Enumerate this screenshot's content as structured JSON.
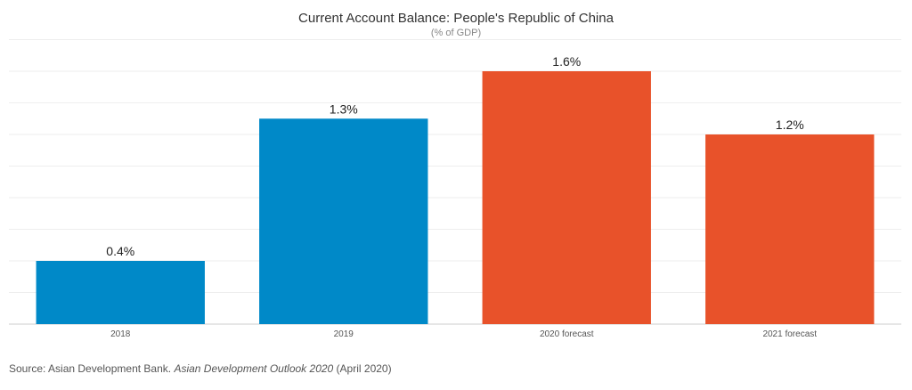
{
  "chart_data": {
    "type": "bar",
    "title": "Current Account Balance: People's Republic of China",
    "subtitle": "(% of GDP)",
    "categories": [
      "2018",
      "2019",
      "2020 forecast",
      "2021 forecast"
    ],
    "values": [
      0.4,
      1.3,
      1.6,
      1.2
    ],
    "value_labels": [
      "0.4%",
      "1.3%",
      "1.6%",
      "1.2%"
    ],
    "bar_colors": [
      "#0089c8",
      "#0089c8",
      "#e8522a",
      "#e8522a"
    ],
    "ylim": [
      0,
      1.6
    ],
    "grid": true,
    "xlabel": "",
    "ylabel": ""
  },
  "source": {
    "prefix": "Source: Asian Development Bank. ",
    "publication": "Asian Development Outlook 2020",
    "suffix": " (April 2020)"
  }
}
